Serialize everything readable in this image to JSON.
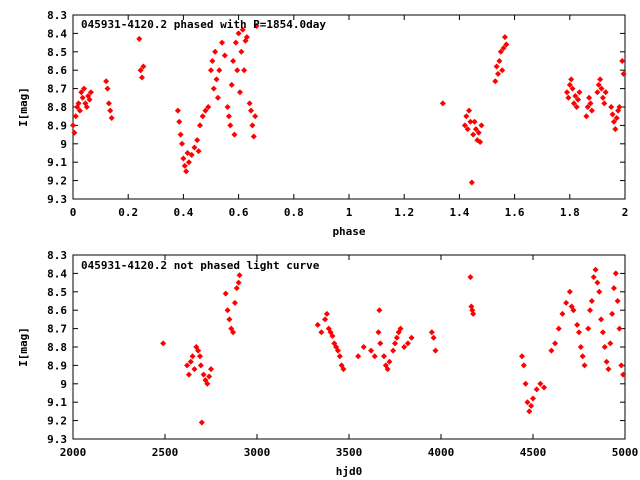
{
  "colors": {
    "points": "#ff0000",
    "axes": "#000000",
    "background": "#ffffff"
  },
  "chart_data": [
    {
      "type": "scatter",
      "title": "045931-4120.2 phased with P=1854.0day",
      "xlabel": "phase",
      "ylabel": "I[mag]",
      "xlim": [
        0,
        2
      ],
      "ylim": [
        8.3,
        9.3
      ],
      "y_inverted": true,
      "grid": false,
      "xticks": [
        "0",
        "0.2",
        "0.4",
        "0.6",
        "0.8",
        "1",
        "1.2",
        "1.4",
        "1.6",
        "1.8",
        "2"
      ],
      "yticks": [
        "8.3",
        "8.4",
        "8.5",
        "8.6",
        "8.7",
        "8.8",
        "8.9",
        "9",
        "9.1",
        "9.2",
        "9.3"
      ],
      "series": [
        {
          "values": [
            [
              0.0,
              8.9
            ],
            [
              0.005,
              8.94
            ],
            [
              0.01,
              8.85
            ],
            [
              0.015,
              8.8
            ],
            [
              0.02,
              8.78
            ],
            [
              0.025,
              8.82
            ],
            [
              0.03,
              8.72
            ],
            [
              0.035,
              8.75
            ],
            [
              0.04,
              8.7
            ],
            [
              0.045,
              8.78
            ],
            [
              0.05,
              8.8
            ],
            [
              0.055,
              8.74
            ],
            [
              0.06,
              8.76
            ],
            [
              0.065,
              8.72
            ],
            [
              0.12,
              8.66
            ],
            [
              0.125,
              8.7
            ],
            [
              0.13,
              8.78
            ],
            [
              0.135,
              8.82
            ],
            [
              0.14,
              8.86
            ],
            [
              0.24,
              8.43
            ],
            [
              0.245,
              8.6
            ],
            [
              0.25,
              8.64
            ],
            [
              0.255,
              8.58
            ],
            [
              0.38,
              8.82
            ],
            [
              0.385,
              8.88
            ],
            [
              0.39,
              8.95
            ],
            [
              0.395,
              9.0
            ],
            [
              0.4,
              9.08
            ],
            [
              0.405,
              9.12
            ],
            [
              0.41,
              9.15
            ],
            [
              0.415,
              9.05
            ],
            [
              0.42,
              9.1
            ],
            [
              0.43,
              9.06
            ],
            [
              0.44,
              9.02
            ],
            [
              0.45,
              8.98
            ],
            [
              0.455,
              9.04
            ],
            [
              0.46,
              8.9
            ],
            [
              0.47,
              8.85
            ],
            [
              0.48,
              8.82
            ],
            [
              0.49,
              8.8
            ],
            [
              0.5,
              8.6
            ],
            [
              0.505,
              8.55
            ],
            [
              0.51,
              8.7
            ],
            [
              0.515,
              8.5
            ],
            [
              0.52,
              8.65
            ],
            [
              0.525,
              8.75
            ],
            [
              0.53,
              8.6
            ],
            [
              0.54,
              8.45
            ],
            [
              0.55,
              8.52
            ],
            [
              0.56,
              8.8
            ],
            [
              0.565,
              8.85
            ],
            [
              0.57,
              8.9
            ],
            [
              0.575,
              8.68
            ],
            [
              0.58,
              8.55
            ],
            [
              0.585,
              8.95
            ],
            [
              0.59,
              8.45
            ],
            [
              0.595,
              8.6
            ],
            [
              0.6,
              8.4
            ],
            [
              0.605,
              8.72
            ],
            [
              0.61,
              8.5
            ],
            [
              0.615,
              8.38
            ],
            [
              0.62,
              8.6
            ],
            [
              0.625,
              8.44
            ],
            [
              0.63,
              8.42
            ],
            [
              0.64,
              8.78
            ],
            [
              0.645,
              8.82
            ],
            [
              0.65,
              8.9
            ],
            [
              0.655,
              8.96
            ],
            [
              0.66,
              8.85
            ],
            [
              0.665,
              8.36
            ],
            [
              1.34,
              8.78
            ],
            [
              1.42,
              8.9
            ],
            [
              1.425,
              8.85
            ],
            [
              1.43,
              8.92
            ],
            [
              1.435,
              8.82
            ],
            [
              1.44,
              8.88
            ],
            [
              1.445,
              9.21
            ],
            [
              1.45,
              8.95
            ],
            [
              1.455,
              8.88
            ],
            [
              1.46,
              8.92
            ],
            [
              1.465,
              8.98
            ],
            [
              1.47,
              8.94
            ],
            [
              1.475,
              8.99
            ],
            [
              1.48,
              8.9
            ],
            [
              1.53,
              8.66
            ],
            [
              1.535,
              8.58
            ],
            [
              1.54,
              8.62
            ],
            [
              1.545,
              8.55
            ],
            [
              1.55,
              8.5
            ],
            [
              1.555,
              8.6
            ],
            [
              1.56,
              8.48
            ],
            [
              1.565,
              8.42
            ],
            [
              1.57,
              8.46
            ],
            [
              1.79,
              8.72
            ],
            [
              1.795,
              8.75
            ],
            [
              1.8,
              8.68
            ],
            [
              1.805,
              8.65
            ],
            [
              1.81,
              8.7
            ],
            [
              1.815,
              8.78
            ],
            [
              1.82,
              8.74
            ],
            [
              1.825,
              8.8
            ],
            [
              1.83,
              8.76
            ],
            [
              1.835,
              8.72
            ],
            [
              1.86,
              8.85
            ],
            [
              1.865,
              8.8
            ],
            [
              1.87,
              8.75
            ],
            [
              1.875,
              8.78
            ],
            [
              1.88,
              8.82
            ],
            [
              1.9,
              8.72
            ],
            [
              1.905,
              8.68
            ],
            [
              1.91,
              8.65
            ],
            [
              1.915,
              8.7
            ],
            [
              1.92,
              8.75
            ],
            [
              1.925,
              8.78
            ],
            [
              1.93,
              8.72
            ],
            [
              1.95,
              8.8
            ],
            [
              1.955,
              8.84
            ],
            [
              1.96,
              8.88
            ],
            [
              1.965,
              8.92
            ],
            [
              1.97,
              8.86
            ],
            [
              1.975,
              8.82
            ],
            [
              1.98,
              8.8
            ],
            [
              1.99,
              8.55
            ],
            [
              1.995,
              8.62
            ]
          ]
        }
      ]
    },
    {
      "type": "scatter",
      "title": "045931-4120.2 not phased light curve",
      "xlabel": "hjd0",
      "ylabel": "I[mag]",
      "xlim": [
        2000,
        5000
      ],
      "ylim": [
        8.3,
        9.3
      ],
      "y_inverted": true,
      "grid": false,
      "xticks": [
        "2000",
        "2500",
        "3000",
        "3500",
        "4000",
        "4500",
        "5000"
      ],
      "yticks": [
        "8.3",
        "8.4",
        "8.5",
        "8.6",
        "8.7",
        "8.8",
        "8.9",
        "9",
        "9.1",
        "9.2",
        "9.3"
      ],
      "series": [
        {
          "values": [
            [
              2490,
              8.78
            ],
            [
              2620,
              8.9
            ],
            [
              2630,
              8.95
            ],
            [
              2640,
              8.88
            ],
            [
              2650,
              8.85
            ],
            [
              2660,
              8.92
            ],
            [
              2670,
              8.8
            ],
            [
              2680,
              8.82
            ],
            [
              2690,
              8.85
            ],
            [
              2695,
              8.9
            ],
            [
              2700,
              9.21
            ],
            [
              2710,
              8.95
            ],
            [
              2720,
              8.98
            ],
            [
              2730,
              9.0
            ],
            [
              2740,
              8.96
            ],
            [
              2750,
              8.92
            ],
            [
              2830,
              8.51
            ],
            [
              2840,
              8.6
            ],
            [
              2850,
              8.65
            ],
            [
              2860,
              8.7
            ],
            [
              2870,
              8.72
            ],
            [
              2880,
              8.56
            ],
            [
              2890,
              8.48
            ],
            [
              2900,
              8.45
            ],
            [
              2905,
              8.41
            ],
            [
              3330,
              8.68
            ],
            [
              3350,
              8.72
            ],
            [
              3370,
              8.65
            ],
            [
              3380,
              8.62
            ],
            [
              3390,
              8.7
            ],
            [
              3400,
              8.72
            ],
            [
              3410,
              8.74
            ],
            [
              3420,
              8.78
            ],
            [
              3430,
              8.8
            ],
            [
              3440,
              8.82
            ],
            [
              3450,
              8.85
            ],
            [
              3460,
              8.9
            ],
            [
              3470,
              8.92
            ],
            [
              3550,
              8.85
            ],
            [
              3580,
              8.8
            ],
            [
              3620,
              8.82
            ],
            [
              3640,
              8.85
            ],
            [
              3660,
              8.72
            ],
            [
              3665,
              8.6
            ],
            [
              3670,
              8.78
            ],
            [
              3690,
              8.85
            ],
            [
              3700,
              8.9
            ],
            [
              3710,
              8.92
            ],
            [
              3720,
              8.88
            ],
            [
              3740,
              8.82
            ],
            [
              3750,
              8.78
            ],
            [
              3760,
              8.75
            ],
            [
              3770,
              8.72
            ],
            [
              3780,
              8.7
            ],
            [
              3800,
              8.8
            ],
            [
              3820,
              8.78
            ],
            [
              3840,
              8.75
            ],
            [
              3950,
              8.72
            ],
            [
              3960,
              8.75
            ],
            [
              3970,
              8.82
            ],
            [
              4160,
              8.42
            ],
            [
              4165,
              8.58
            ],
            [
              4170,
              8.6
            ],
            [
              4175,
              8.62
            ],
            [
              4440,
              8.85
            ],
            [
              4450,
              8.9
            ],
            [
              4460,
              9.0
            ],
            [
              4470,
              9.1
            ],
            [
              4480,
              9.15
            ],
            [
              4490,
              9.12
            ],
            [
              4500,
              9.08
            ],
            [
              4520,
              9.03
            ],
            [
              4540,
              9.0
            ],
            [
              4560,
              9.02
            ],
            [
              4600,
              8.82
            ],
            [
              4620,
              8.78
            ],
            [
              4640,
              8.7
            ],
            [
              4660,
              8.62
            ],
            [
              4680,
              8.56
            ],
            [
              4700,
              8.5
            ],
            [
              4710,
              8.58
            ],
            [
              4720,
              8.6
            ],
            [
              4740,
              8.68
            ],
            [
              4750,
              8.72
            ],
            [
              4760,
              8.8
            ],
            [
              4770,
              8.85
            ],
            [
              4780,
              8.9
            ],
            [
              4800,
              8.7
            ],
            [
              4810,
              8.6
            ],
            [
              4820,
              8.55
            ],
            [
              4830,
              8.42
            ],
            [
              4840,
              8.38
            ],
            [
              4850,
              8.45
            ],
            [
              4860,
              8.5
            ],
            [
              4870,
              8.65
            ],
            [
              4880,
              8.72
            ],
            [
              4890,
              8.8
            ],
            [
              4900,
              8.88
            ],
            [
              4910,
              8.92
            ],
            [
              4920,
              8.78
            ],
            [
              4930,
              8.62
            ],
            [
              4940,
              8.48
            ],
            [
              4950,
              8.4
            ],
            [
              4960,
              8.55
            ],
            [
              4970,
              8.7
            ],
            [
              4980,
              8.9
            ],
            [
              4990,
              8.95
            ]
          ]
        }
      ]
    }
  ]
}
